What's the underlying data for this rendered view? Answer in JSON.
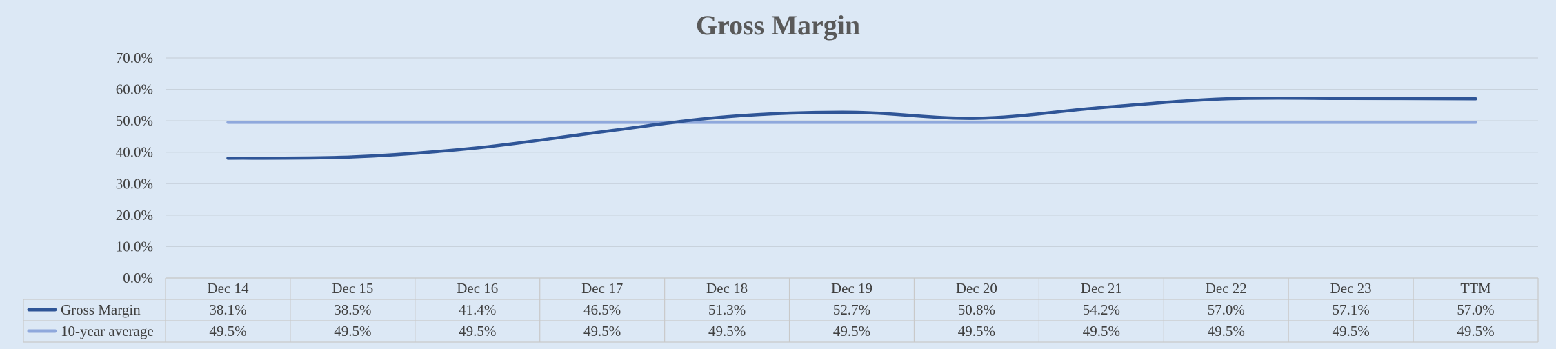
{
  "chart_data": {
    "type": "line",
    "title": "Gross Margin",
    "categories": [
      "Dec 14",
      "Dec 15",
      "Dec 16",
      "Dec 17",
      "Dec 18",
      "Dec 19",
      "Dec 20",
      "Dec 21",
      "Dec 22",
      "Dec 23",
      "TTM"
    ],
    "series": [
      {
        "name": "Gross Margin",
        "color": "#2f5597",
        "values": [
          38.1,
          38.5,
          41.4,
          46.5,
          51.3,
          52.7,
          50.8,
          54.2,
          57.0,
          57.1,
          57.0
        ],
        "labels": [
          "38.1%",
          "38.5%",
          "41.4%",
          "46.5%",
          "51.3%",
          "52.7%",
          "50.8%",
          "54.2%",
          "57.0%",
          "57.1%",
          "57.0%"
        ]
      },
      {
        "name": "10-year average",
        "color": "#8fa8dc",
        "values": [
          49.5,
          49.5,
          49.5,
          49.5,
          49.5,
          49.5,
          49.5,
          49.5,
          49.5,
          49.5,
          49.5
        ],
        "labels": [
          "49.5%",
          "49.5%",
          "49.5%",
          "49.5%",
          "49.5%",
          "49.5%",
          "49.5%",
          "49.5%",
          "49.5%",
          "49.5%",
          "49.5%"
        ]
      }
    ],
    "ylim": [
      0,
      70
    ],
    "y_ticks": [
      "0.0%",
      "10.0%",
      "20.0%",
      "30.0%",
      "40.0%",
      "50.0%",
      "60.0%",
      "70.0%"
    ],
    "grid": true,
    "legend": "data-table-bottom",
    "smooth": true
  }
}
